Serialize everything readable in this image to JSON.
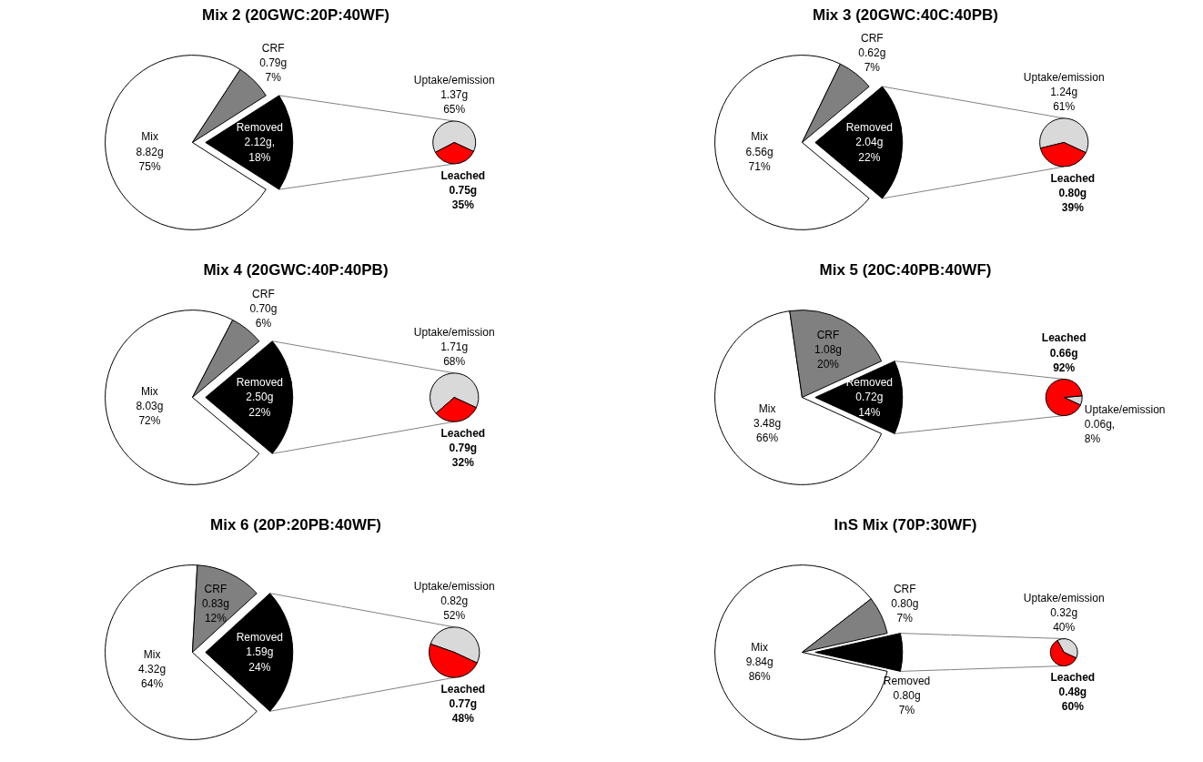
{
  "chart_data": [
    {
      "type": "pie",
      "title": "Mix 2 (20GWC:20P:40WF)",
      "categories": [
        "Mix",
        "CRF",
        "Removed"
      ],
      "values": [
        8.82,
        0.79,
        2.12
      ],
      "colors": [
        "#ffffff",
        "#808080",
        "#000000"
      ],
      "value_labels": [
        "8.82g\n75%",
        "0.79g\n7%",
        "2.12g,\n18%"
      ]
    },
    {
      "type": "pie",
      "categories": [
        "Uptake/emission",
        "Leached"
      ],
      "values": [
        1.37,
        0.75
      ],
      "colors": [
        "#d9d9d9",
        "#ff0000"
      ],
      "value_labels": [
        "1.37g\n65%",
        "0.75g\n35%"
      ]
    },
    {
      "type": "pie",
      "title": "Mix 3 (20GWC:40C:40PB)",
      "categories": [
        "Mix",
        "CRF",
        "Removed"
      ],
      "values": [
        6.56,
        0.62,
        2.04
      ],
      "colors": [
        "#ffffff",
        "#808080",
        "#000000"
      ],
      "value_labels": [
        "6.56g\n71%",
        "0.62g\n7%",
        "2.04g\n22%"
      ]
    },
    {
      "type": "pie",
      "categories": [
        "Uptake/emission",
        "Leached"
      ],
      "values": [
        1.24,
        0.8
      ],
      "colors": [
        "#d9d9d9",
        "#ff0000"
      ],
      "value_labels": [
        "1.24g\n61%",
        "0.80g\n39%"
      ]
    },
    {
      "type": "pie",
      "title": "Mix 4 (20GWC:40P:40PB)",
      "categories": [
        "Mix",
        "CRF",
        "Removed"
      ],
      "values": [
        8.03,
        0.7,
        2.5
      ],
      "colors": [
        "#ffffff",
        "#808080",
        "#000000"
      ],
      "value_labels": [
        "8.03g\n72%",
        "0.70g\n6%",
        "2.50g\n22%"
      ]
    },
    {
      "type": "pie",
      "categories": [
        "Uptake/emission",
        "Leached"
      ],
      "values": [
        1.71,
        0.79
      ],
      "colors": [
        "#d9d9d9",
        "#ff0000"
      ],
      "value_labels": [
        "1.71g\n68%",
        "0.79g\n32%"
      ]
    },
    {
      "type": "pie",
      "title": "Mix 5 (20C:40PB:40WF)",
      "categories": [
        "Mix",
        "CRF",
        "Removed"
      ],
      "values": [
        3.48,
        1.08,
        0.72
      ],
      "colors": [
        "#ffffff",
        "#808080",
        "#000000"
      ],
      "value_labels": [
        "3.48g\n66%",
        "1.08g\n20%",
        "0.72g\n14%"
      ]
    },
    {
      "type": "pie",
      "categories": [
        "Uptake/emission",
        "Leached"
      ],
      "values": [
        0.06,
        0.66
      ],
      "colors": [
        "#d9d9d9",
        "#ff0000"
      ],
      "value_labels": [
        "0.06g,\n8%",
        "0.66g\n92%"
      ]
    },
    {
      "type": "pie",
      "title": "Mix 6 (20P:20PB:40WF)",
      "categories": [
        "Mix",
        "CRF",
        "Removed"
      ],
      "values": [
        4.32,
        0.83,
        1.59
      ],
      "colors": [
        "#ffffff",
        "#808080",
        "#000000"
      ],
      "value_labels": [
        "4.32g\n64%",
        "0.83g\n12%",
        "1.59g\n24%"
      ]
    },
    {
      "type": "pie",
      "categories": [
        "Uptake/emission",
        "Leached"
      ],
      "values": [
        0.82,
        0.77
      ],
      "colors": [
        "#d9d9d9",
        "#ff0000"
      ],
      "value_labels": [
        "0.82g\n52%",
        "0.77g\n48%"
      ]
    },
    {
      "type": "pie",
      "title": "InS Mix (70P:30WF)",
      "categories": [
        "Mix",
        "CRF",
        "Removed"
      ],
      "values": [
        9.84,
        0.8,
        0.8
      ],
      "colors": [
        "#ffffff",
        "#808080",
        "#000000"
      ],
      "value_labels": [
        "9.84g\n86%",
        "0.80g\n7%",
        "0.80g\n7%"
      ]
    },
    {
      "type": "pie",
      "categories": [
        "Uptake/emission",
        "Leached"
      ],
      "values": [
        0.32,
        0.48
      ],
      "colors": [
        "#d9d9d9",
        "#ff0000"
      ],
      "value_labels": [
        "0.32g\n40%",
        "0.48g\n60%"
      ]
    }
  ]
}
